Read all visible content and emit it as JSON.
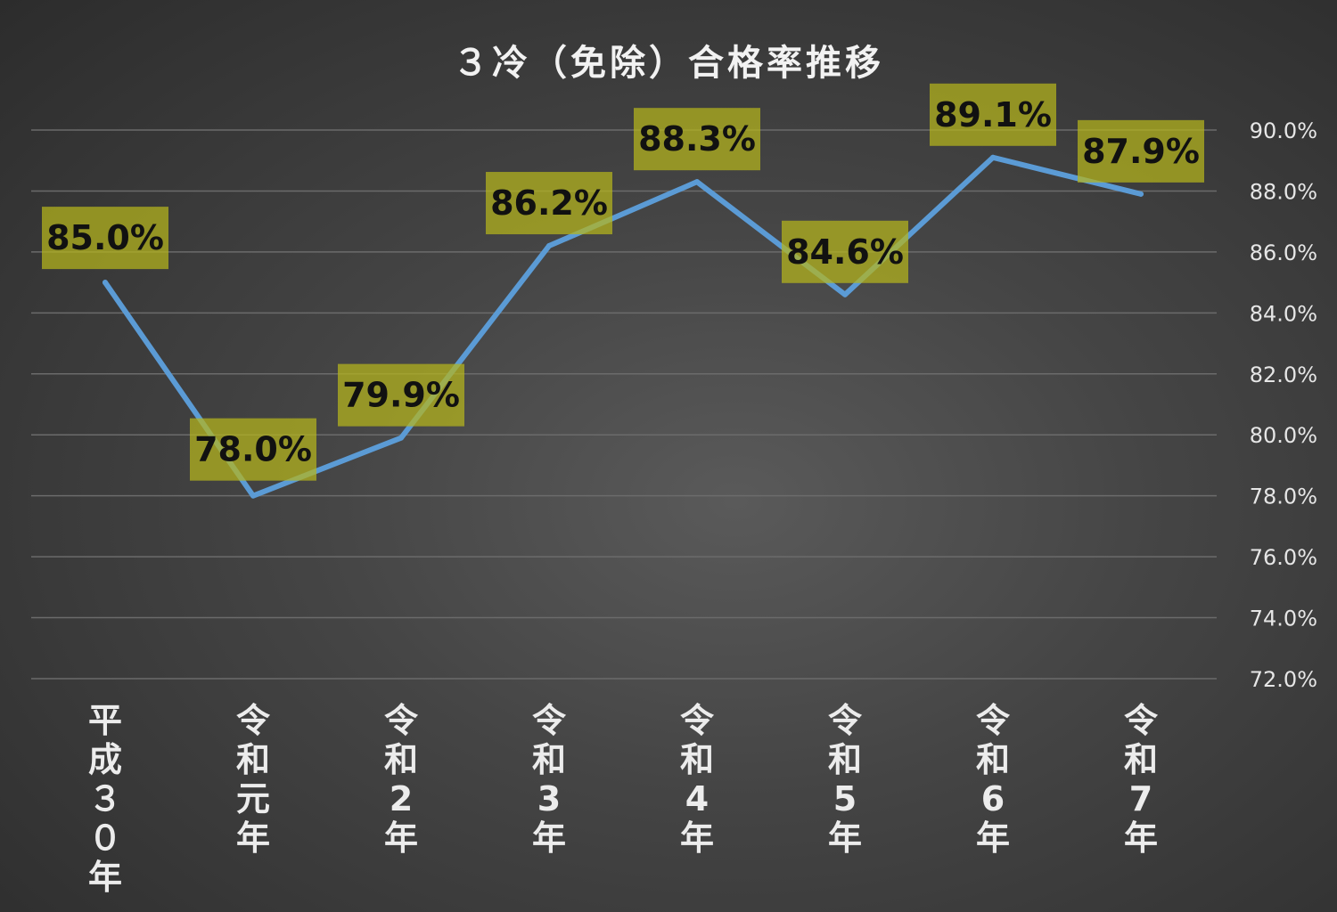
{
  "chart_data": {
    "type": "line",
    "title": "３冷（免除）合格率推移",
    "categories": [
      [
        "平",
        "成",
        "３",
        "０",
        "年"
      ],
      [
        "令",
        "和",
        "元",
        "年"
      ],
      [
        "令",
        "和",
        "2",
        "年"
      ],
      [
        "令",
        "和",
        "3",
        "年"
      ],
      [
        "令",
        "和",
        "4",
        "年"
      ],
      [
        "令",
        "和",
        "5",
        "年"
      ],
      [
        "令",
        "和",
        "6",
        "年"
      ],
      [
        "令",
        "和",
        "7",
        "年"
      ]
    ],
    "series": [
      {
        "values": [
          85.0,
          78.0,
          79.9,
          86.2,
          88.3,
          84.6,
          89.1,
          87.9
        ],
        "labels": [
          "85.0%",
          "78.0%",
          "79.9%",
          "86.2%",
          "88.3%",
          "84.6%",
          "89.1%",
          "87.9%"
        ],
        "color": "#5b9bd5"
      }
    ],
    "ylim": [
      72,
      90
    ],
    "yticks": [
      90,
      88,
      86,
      84,
      82,
      80,
      78,
      76,
      74,
      72
    ],
    "ytick_labels": [
      "90.0%",
      "88.0%",
      "86.0%",
      "84.0%",
      "82.0%",
      "80.0%",
      "78.0%",
      "76.0%",
      "74.0%",
      "72.0%"
    ],
    "y_axis_side": "right",
    "grid": true,
    "legend": "none",
    "data_label_color": "#b5b51c",
    "xlabel": "",
    "ylabel": ""
  }
}
